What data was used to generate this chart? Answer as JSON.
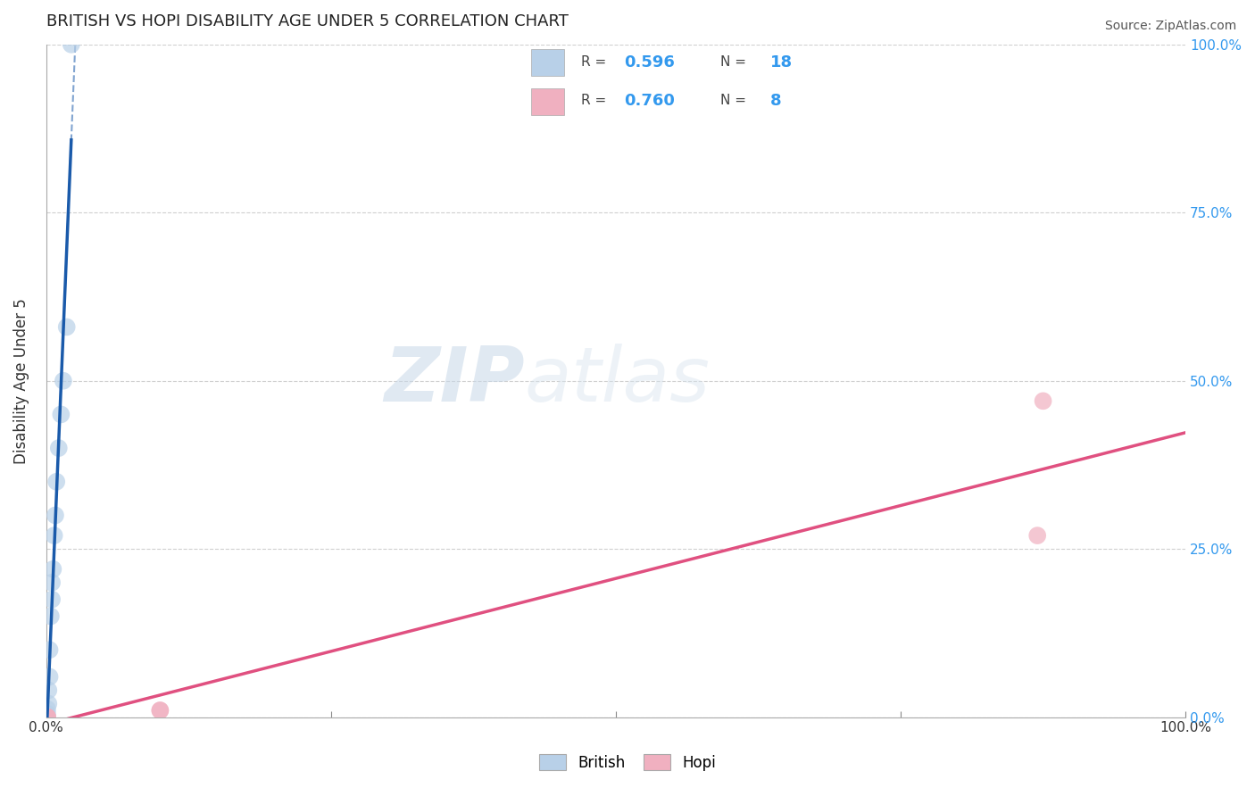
{
  "title": "BRITISH VS HOPI DISABILITY AGE UNDER 5 CORRELATION CHART",
  "source": "Source: ZipAtlas.com",
  "ylabel": "Disability Age Under 5",
  "xlim": [
    0,
    1.0
  ],
  "ylim": [
    0,
    1.0
  ],
  "british_x": [
    0.001,
    0.001,
    0.002,
    0.002,
    0.003,
    0.003,
    0.004,
    0.005,
    0.005,
    0.006,
    0.007,
    0.008,
    0.009,
    0.011,
    0.013,
    0.015,
    0.018,
    0.022
  ],
  "british_y": [
    0.005,
    0.012,
    0.02,
    0.04,
    0.06,
    0.1,
    0.15,
    0.175,
    0.2,
    0.22,
    0.27,
    0.3,
    0.35,
    0.4,
    0.45,
    0.5,
    0.58,
    1.0
  ],
  "hopi_x": [
    0.0,
    0.001,
    0.001,
    0.001,
    0.1,
    0.1,
    0.87,
    0.875
  ],
  "hopi_y": [
    0.0,
    0.0,
    0.0,
    0.0,
    0.01,
    0.01,
    0.27,
    0.47
  ],
  "british_R": 0.596,
  "british_N": 18,
  "hopi_R": 0.76,
  "hopi_N": 8,
  "british_color": "#b8d0e8",
  "british_line_color": "#1a5aaa",
  "hopi_color": "#f0b0c0",
  "hopi_line_color": "#e05080",
  "watermark_zip": "ZIP",
  "watermark_atlas": "atlas",
  "grid_color": "#d0d0d0",
  "background_color": "#ffffff",
  "right_tick_color": "#3399ee",
  "ytick_right": [
    "0.0%",
    "25.0%",
    "50.0%",
    "75.0%",
    "100.0%"
  ],
  "ytick_vals": [
    0.0,
    0.25,
    0.5,
    0.75,
    1.0
  ],
  "xtick_vals": [
    0.0,
    0.25,
    0.5,
    0.75,
    1.0
  ]
}
